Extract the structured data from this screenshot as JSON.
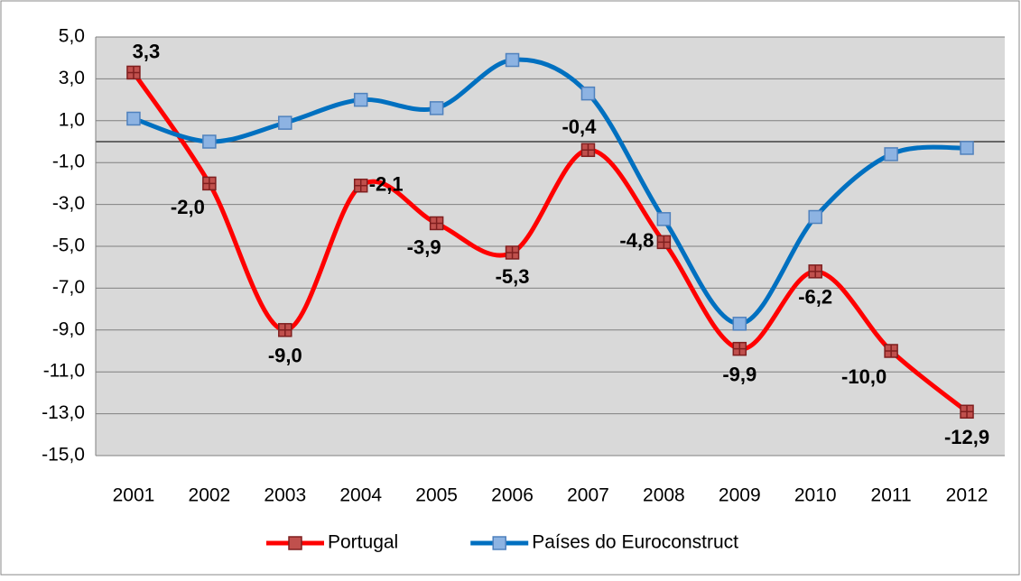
{
  "chart_data": {
    "type": "line",
    "categories": [
      "2001",
      "2002",
      "2003",
      "2004",
      "2005",
      "2006",
      "2007",
      "2008",
      "2009",
      "2010",
      "2011",
      "2012"
    ],
    "series": [
      {
        "name": "Portugal",
        "color": "#ff0000",
        "marker_color": "#c0504d",
        "values": [
          3.3,
          -2.0,
          -9.0,
          -2.1,
          -3.9,
          -5.3,
          -0.4,
          -4.8,
          -9.9,
          -6.2,
          -10.0,
          -12.9
        ],
        "value_labels": [
          "3,3",
          "-2,0",
          "-9,0",
          "-2,1",
          "-3,9",
          "-5,3",
          "-0,4",
          "-4,8",
          "-9,9",
          "-6,2",
          "-10,0",
          "-12,9"
        ]
      },
      {
        "name": "Países do Euroconstruct",
        "color": "#0070c0",
        "marker_color": "#8db3e2",
        "values": [
          1.1,
          0.0,
          0.9,
          2.0,
          1.6,
          3.9,
          2.3,
          -3.7,
          -8.7,
          -3.6,
          -0.6,
          -0.3
        ]
      }
    ],
    "ylim": [
      -15,
      5
    ],
    "yticks": [
      {
        "value": 5,
        "label": "5,0"
      },
      {
        "value": 3,
        "label": "3,0"
      },
      {
        "value": 1,
        "label": "1,0"
      },
      {
        "value": -1,
        "label": "-1,0"
      },
      {
        "value": -3,
        "label": "-3,0"
      },
      {
        "value": -5,
        "label": "-5,0"
      },
      {
        "value": -7,
        "label": "-7,0"
      },
      {
        "value": -9,
        "label": "-9,0"
      },
      {
        "value": -11,
        "label": "-11,0"
      },
      {
        "value": -13,
        "label": "-13,0"
      },
      {
        "value": -15,
        "label": "-15,0"
      }
    ],
    "grid": true,
    "legend": "bottom"
  }
}
